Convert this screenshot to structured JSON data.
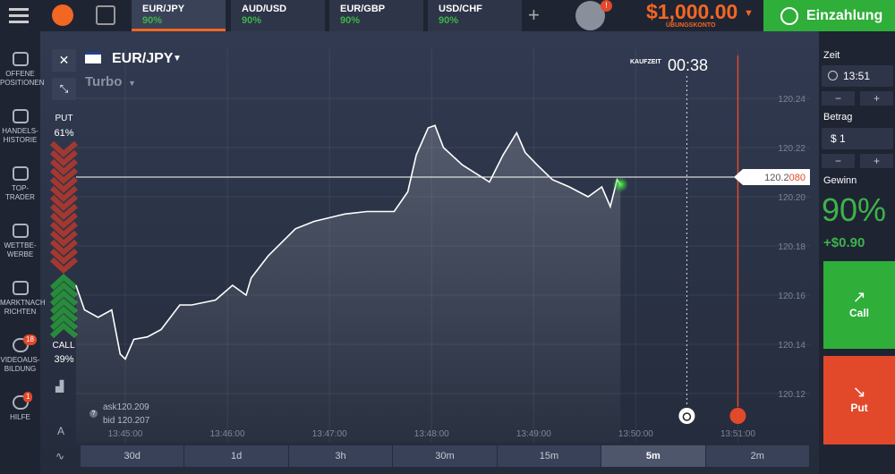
{
  "top_bar": {
    "tabs": [
      {
        "asset": "EUR/JPY",
        "payout": "90%"
      },
      {
        "asset": "AUD/USD",
        "payout": "90%"
      },
      {
        "asset": "EUR/GBP",
        "payout": "90%"
      },
      {
        "asset": "USD/CHF",
        "payout": "90%"
      }
    ],
    "alert_badge": "!",
    "balance": "$1,000.00",
    "account_type": "ÜBUNGSKONTO",
    "deposit_button": "Einzahlung"
  },
  "sidebar": {
    "items": [
      {
        "lines": [
          "OFFENE",
          "POSITIONEN"
        ]
      },
      {
        "lines": [
          "HANDELS-",
          "HISTORIE"
        ]
      },
      {
        "lines": [
          "TOP-",
          "TRADER"
        ]
      },
      {
        "lines": [
          "WETTBE-",
          "WERBE"
        ]
      },
      {
        "lines": [
          "MARKTNACH",
          "RICHTEN"
        ]
      },
      {
        "lines": [
          "VIDEOAUS-",
          "BILDUNG"
        ],
        "badge": "18"
      },
      {
        "lines": [
          "HILFE"
        ],
        "badge": "1"
      }
    ]
  },
  "asset": {
    "name": "EUR/JPY",
    "mode": "Turbo"
  },
  "sentiment": {
    "put_label": "PUT",
    "put_share": "61%",
    "call_label": "CALL",
    "call_share": "39%"
  },
  "countdown": {
    "label": "KAUFZEIT",
    "time": "00:38"
  },
  "quote": {
    "ask_label": "ask",
    "ask": "120.209",
    "bid_label": "bid",
    "bid": "120.207"
  },
  "chart_data": {
    "type": "line",
    "color": "#ffffff",
    "x": [
      "13:44:31",
      "13:44:36",
      "13:44:44",
      "13:44:52",
      "13:44:57",
      "13:45:00",
      "13:45:05",
      "13:45:13",
      "13:45:21",
      "13:45:32",
      "13:45:39",
      "13:45:53",
      "13:46:03",
      "13:46:11",
      "13:46:14",
      "13:46:24",
      "13:46:40",
      "13:46:51",
      "13:47:09",
      "13:47:22",
      "13:47:38",
      "13:47:46",
      "13:47:51",
      "13:47:58",
      "13:48:02",
      "13:48:07",
      "13:48:18",
      "13:48:34",
      "13:48:42",
      "13:48:50",
      "13:48:55",
      "13:49:02",
      "13:49:11",
      "13:49:21",
      "13:49:32",
      "13:49:40",
      "13:49:45",
      "13:49:49",
      "13:49:51"
    ],
    "values": [
      120.164,
      120.154,
      120.151,
      120.154,
      120.136,
      120.134,
      120.142,
      120.143,
      120.146,
      120.156,
      120.156,
      120.158,
      120.164,
      120.16,
      120.167,
      120.176,
      120.187,
      120.19,
      120.193,
      120.194,
      120.194,
      120.202,
      120.217,
      120.228,
      120.229,
      120.22,
      120.213,
      120.206,
      120.217,
      120.226,
      120.218,
      120.213,
      120.207,
      120.204,
      120.2,
      120.204,
      120.196,
      120.207,
      120.205
    ],
    "xlim": [
      "13:44:30",
      "13:51:45"
    ],
    "xticks": [
      "13:45:00",
      "13:46:00",
      "13:47:00",
      "13:48:00",
      "13:49:00",
      "13:50:00",
      "13:51:00"
    ],
    "ylim": [
      120.1,
      120.26
    ],
    "yticks": [
      120.12,
      120.14,
      120.16,
      120.18,
      {
        "value": 120.2,
        "label": "120.20"
      },
      120.22,
      120.24
    ],
    "grid": true,
    "current_price": {
      "value": 120.208,
      "label": "120.2080"
    },
    "purchase_deadline": "13:50:30",
    "expiration": "13:51:00"
  },
  "timeframes": {
    "options": [
      "30d",
      "1d",
      "3h",
      "30m",
      "15m",
      "5m",
      "2m"
    ],
    "selected": 5
  },
  "trade_panel": {
    "time_label": "Zeit",
    "time": "13:51",
    "amount_label": "Betrag",
    "amount": "$ 1",
    "profit_label": "Gewinn",
    "profit_rate": "90%",
    "profit": "+$0.90",
    "call_button": "Call",
    "put_button": "Put"
  }
}
